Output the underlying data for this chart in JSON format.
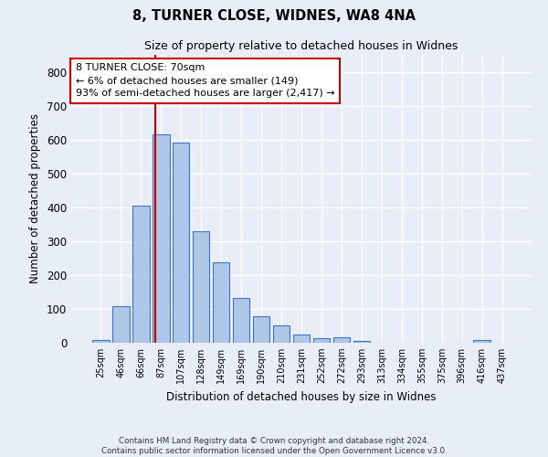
{
  "title1": "8, TURNER CLOSE, WIDNES, WA8 4NA",
  "title2": "Size of property relative to detached houses in Widnes",
  "xlabel": "Distribution of detached houses by size in Widnes",
  "ylabel": "Number of detached properties",
  "categories": [
    "25sqm",
    "46sqm",
    "66sqm",
    "87sqm",
    "107sqm",
    "128sqm",
    "149sqm",
    "169sqm",
    "190sqm",
    "210sqm",
    "231sqm",
    "252sqm",
    "272sqm",
    "293sqm",
    "313sqm",
    "334sqm",
    "355sqm",
    "375sqm",
    "396sqm",
    "416sqm",
    "437sqm"
  ],
  "values": [
    8,
    107,
    405,
    615,
    590,
    330,
    237,
    133,
    78,
    50,
    25,
    13,
    16,
    5,
    0,
    0,
    0,
    0,
    0,
    8,
    0
  ],
  "bar_color": "#aec6e8",
  "bar_edge_color": "#4472c4",
  "background_color": "#e8eef8",
  "grid_color": "#ffffff",
  "vline_color": "#cc0000",
  "annotation_text": "8 TURNER CLOSE: 70sqm\n← 6% of detached houses are smaller (149)\n93% of semi-detached houses are larger (2,417) →",
  "annotation_box_color": "#ffffff",
  "annotation_box_edge": "#cc0000",
  "ylim": [
    0,
    850
  ],
  "yticks": [
    0,
    100,
    200,
    300,
    400,
    500,
    600,
    700,
    800
  ],
  "footer_line1": "Contains HM Land Registry data © Crown copyright and database right 2024.",
  "footer_line2": "Contains public sector information licensed under the Open Government Licence v3.0."
}
